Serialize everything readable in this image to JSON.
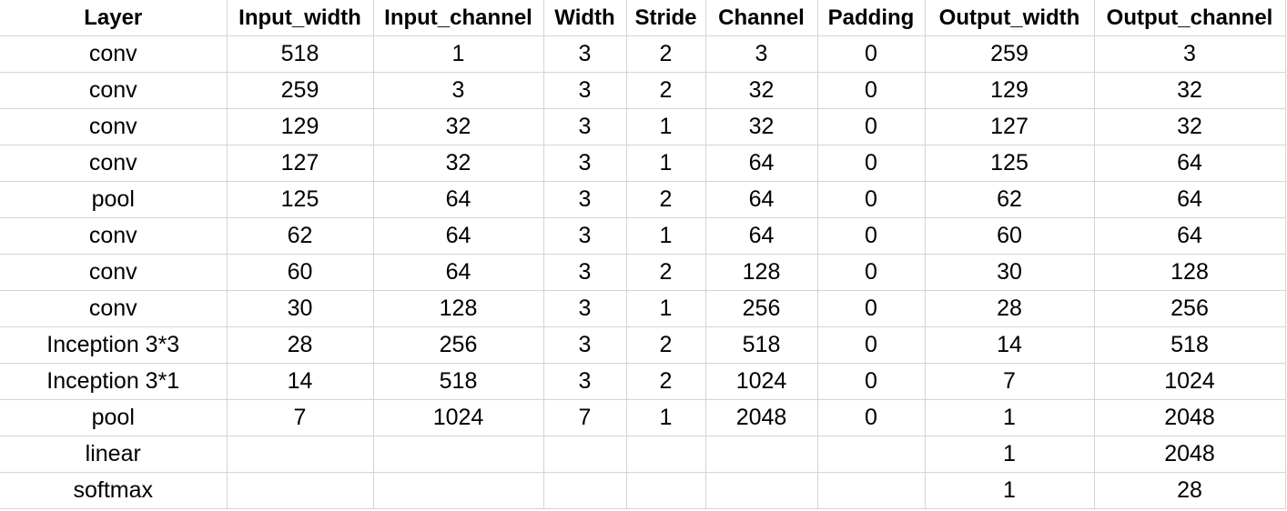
{
  "table": {
    "headers": [
      "Layer",
      "Input_width",
      "Input_channel",
      "Width",
      "Stride",
      "Channel",
      "Padding",
      "Output_width",
      "Output_channel"
    ],
    "rows": [
      [
        "conv",
        "518",
        "1",
        "3",
        "2",
        "3",
        "0",
        "259",
        "3"
      ],
      [
        "conv",
        "259",
        "3",
        "3",
        "2",
        "32",
        "0",
        "129",
        "32"
      ],
      [
        "conv",
        "129",
        "32",
        "3",
        "1",
        "32",
        "0",
        "127",
        "32"
      ],
      [
        "conv",
        "127",
        "32",
        "3",
        "1",
        "64",
        "0",
        "125",
        "64"
      ],
      [
        "pool",
        "125",
        "64",
        "3",
        "2",
        "64",
        "0",
        "62",
        "64"
      ],
      [
        "conv",
        "62",
        "64",
        "3",
        "1",
        "64",
        "0",
        "60",
        "64"
      ],
      [
        "conv",
        "60",
        "64",
        "3",
        "2",
        "128",
        "0",
        "30",
        "128"
      ],
      [
        "conv",
        "30",
        "128",
        "3",
        "1",
        "256",
        "0",
        "28",
        "256"
      ],
      [
        "Inception 3*3",
        "28",
        "256",
        "3",
        "2",
        "518",
        "0",
        "14",
        "518"
      ],
      [
        "Inception 3*1",
        "14",
        "518",
        "3",
        "2",
        "1024",
        "0",
        "7",
        "1024"
      ],
      [
        "pool",
        "7",
        "1024",
        "7",
        "1",
        "2048",
        "0",
        "1",
        "2048"
      ],
      [
        "linear",
        "",
        "",
        "",
        "",
        "",
        "",
        "1",
        "2048"
      ],
      [
        "softmax",
        "",
        "",
        "",
        "",
        "",
        "",
        "1",
        "28"
      ]
    ]
  }
}
